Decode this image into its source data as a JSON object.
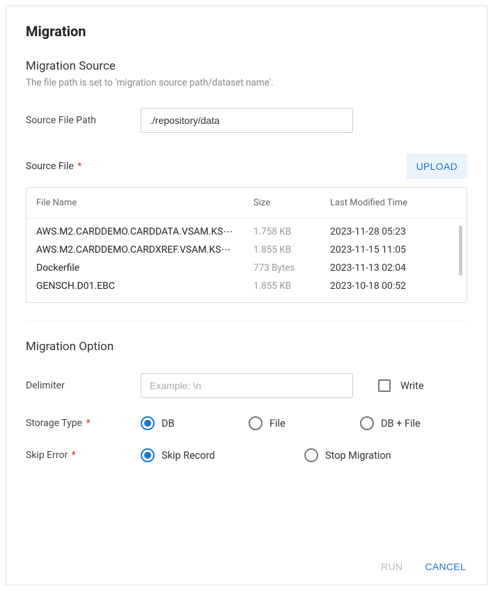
{
  "title": "Migration",
  "source": {
    "heading": "Migration Source",
    "subtext": "The file path is set to 'migration source path/dataset name'.",
    "path_label": "Source File Path",
    "path_value": "./repository/data",
    "file_label": "Source File",
    "upload_label": "UPLOAD",
    "columns": {
      "name": "File Name",
      "size": "Size",
      "time": "Last Modified Time"
    },
    "files": [
      {
        "name": "AWS.M2.CARDDEMO.CARDDATA.VSAM.KS⋯",
        "size": "1.758 KB",
        "time": "2023-11-28 05:23"
      },
      {
        "name": "AWS.M2.CARDDEMO.CARDXREF.VSAM.KS⋯",
        "size": "1.855 KB",
        "time": "2023-11-15 11:05"
      },
      {
        "name": "Dockerfile",
        "size": "773 Bytes",
        "time": "2023-11-13 02:04"
      },
      {
        "name": "GENSCH.D01.EBC",
        "size": "1.855 KB",
        "time": "2023-10-18 00:52"
      }
    ]
  },
  "option": {
    "heading": "Migration Option",
    "delimiter_label": "Delimiter",
    "delimiter_placeholder": "Example: \\n",
    "write_label": "Write",
    "storage_label": "Storage Type",
    "storage_options": [
      "DB",
      "File",
      "DB + File"
    ],
    "storage_selected": 0,
    "skip_label": "Skip Error",
    "skip_options": [
      "Skip Record",
      "Stop Migration"
    ],
    "skip_selected": 0
  },
  "footer": {
    "run": "RUN",
    "cancel": "CANCEL"
  }
}
